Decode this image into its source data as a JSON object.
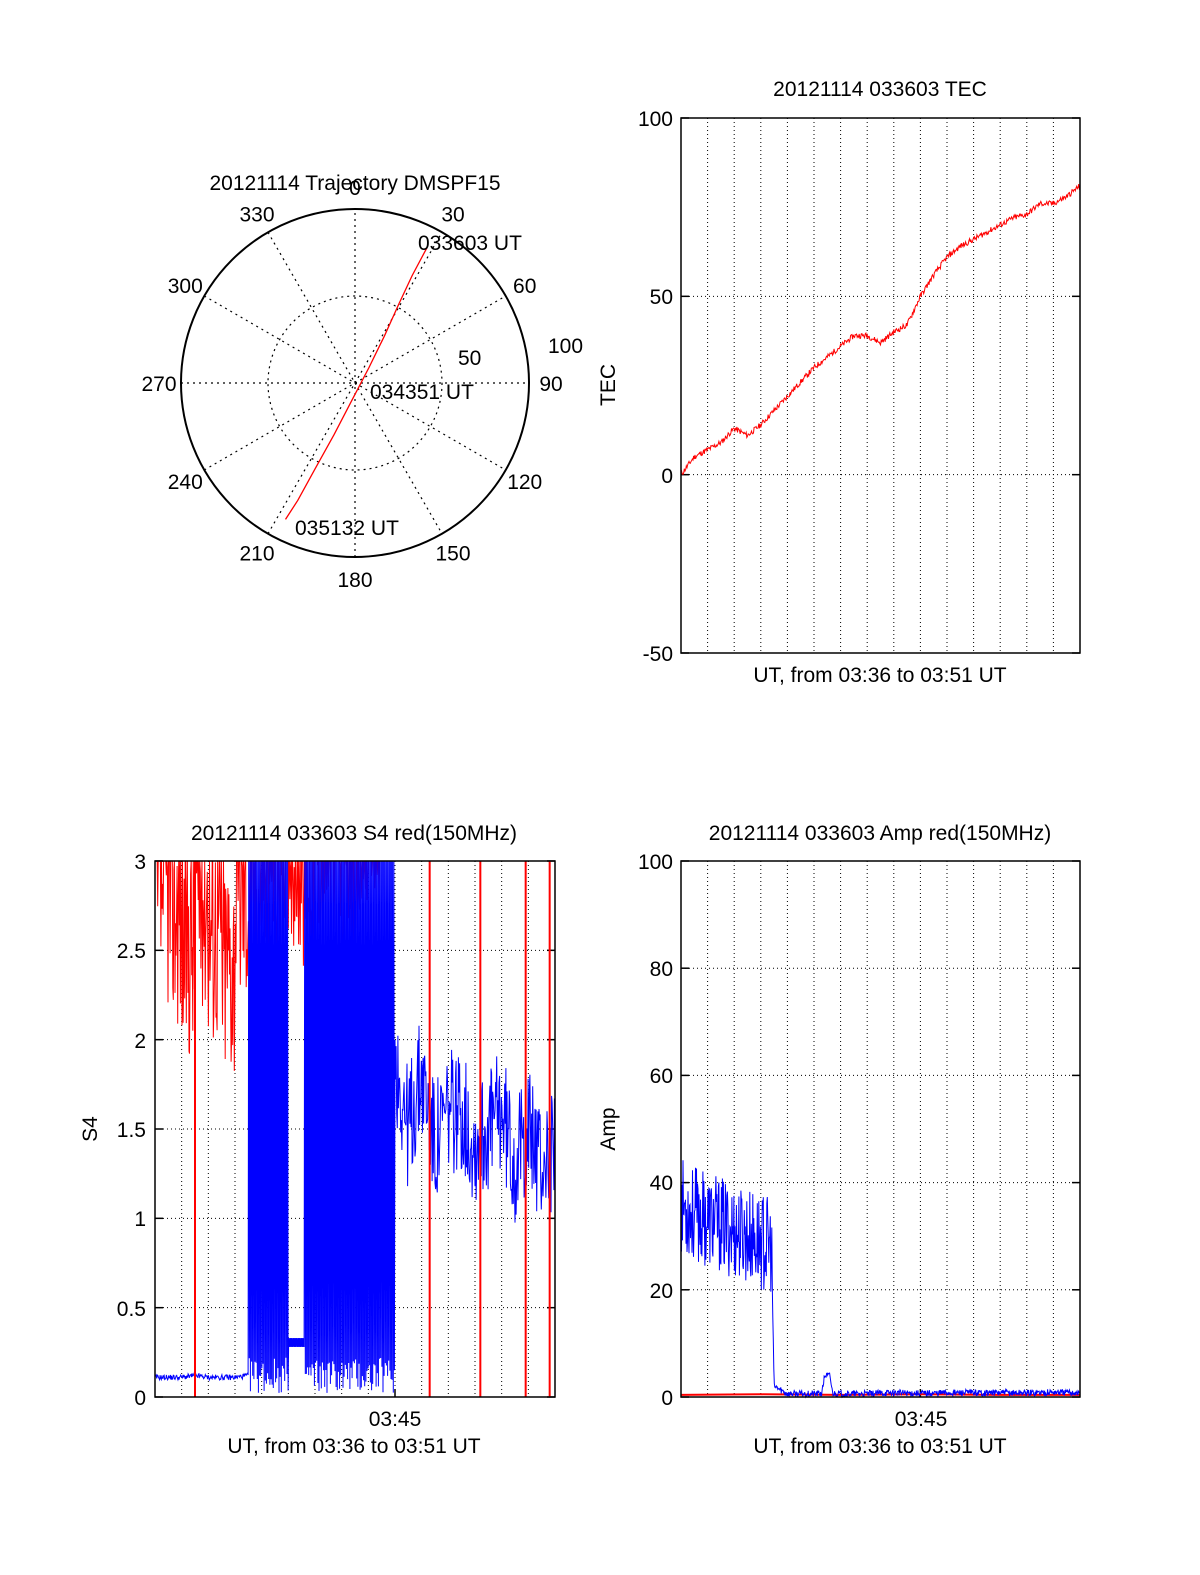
{
  "chart_data": [
    {
      "type": "polar",
      "title": "20121114 Trajectory DMSPF15",
      "angle_labels": [
        "0",
        "30",
        "60",
        "90",
        "120",
        "150",
        "180",
        "210",
        "240",
        "270",
        "300",
        "330"
      ],
      "radial_ticks": [
        "50",
        "100"
      ],
      "rlim": [
        0,
        100
      ],
      "grid": true,
      "series": [
        {
          "color": "#ff0000",
          "points": [
            {
              "az": 28,
              "r": 88
            },
            {
              "az": 28,
              "r": 70
            },
            {
              "az": 29,
              "r": 52
            },
            {
              "az": 32,
              "r": 32
            },
            {
              "az": 42,
              "r": 12
            },
            {
              "az": 190,
              "r": 10
            },
            {
              "az": 202,
              "r": 32
            },
            {
              "az": 205,
              "r": 55
            },
            {
              "az": 206,
              "r": 75
            },
            {
              "az": 207,
              "r": 88
            }
          ]
        }
      ],
      "annotations": [
        {
          "text": "033603 UT",
          "az": 28,
          "r": 88
        },
        {
          "text": "034351 UT",
          "az": 85,
          "r": 13
        },
        {
          "text": "035132 UT",
          "az": 196,
          "r": 90
        }
      ]
    },
    {
      "type": "line",
      "title": "20121114 033603 TEC",
      "xlabel": "UT, from 03:36 to 03:51 UT",
      "ylabel": "TEC",
      "ylim": [
        -50,
        100
      ],
      "yticks": [
        "-50",
        "0",
        "50",
        "100"
      ],
      "xlim": [
        0,
        15
      ],
      "grid": true,
      "series": [
        {
          "color": "#ff0000",
          "x": [
            0,
            0.5,
            1,
            1.5,
            2,
            2.5,
            3,
            3.5,
            4,
            4.5,
            5,
            5.5,
            6,
            6.5,
            7,
            7.5,
            8,
            8.5,
            9,
            9.5,
            10,
            10.5,
            11,
            11.5,
            12,
            12.5,
            13,
            13.5,
            14,
            14.5,
            15
          ],
          "y": [
            0,
            5,
            7,
            9,
            13,
            11,
            14,
            18,
            22,
            26,
            30,
            33,
            36,
            39,
            39,
            37,
            40,
            42,
            50,
            56,
            61,
            64,
            66,
            68,
            70,
            72,
            73,
            76,
            76,
            78,
            81
          ]
        }
      ]
    },
    {
      "type": "line",
      "title": "20121114 033603 S4 red(150MHz)",
      "xlabel": "UT, from 03:36 to 03:51 UT",
      "ylabel": "S4",
      "ylim": [
        0,
        3
      ],
      "yticks": [
        "0",
        "0.5",
        "1",
        "1.5",
        "2",
        "2.5",
        "3"
      ],
      "xlim": [
        0,
        15
      ],
      "xticks": [
        {
          "value": 9,
          "label": "03:45"
        }
      ],
      "grid": true,
      "series": [
        {
          "color": "#ff0000",
          "x": [
            0,
            0.5,
            1,
            1.5,
            2,
            2.5,
            3,
            3.5,
            4,
            4.5,
            5,
            5.5,
            6,
            6.5,
            7,
            7.5,
            8,
            8.5
          ],
          "y": [
            2.6,
            2.5,
            2.3,
            2.6,
            2.4,
            2.2,
            2.6,
            2.5,
            2.8,
            2.7,
            2.9,
            2.8,
            2.9,
            3.0,
            2.8,
            2.9,
            3.0,
            2.6
          ]
        },
        {
          "color": "#0000ff",
          "x": [
            0,
            0.5,
            1,
            1.5,
            2,
            2.5,
            3,
            3.5,
            4,
            4.5,
            5,
            5.5,
            6,
            6.5,
            7,
            7.5,
            8,
            8.5,
            9,
            9.5,
            10,
            10.5,
            11,
            11.5,
            12,
            12.5,
            13,
            13.5,
            14,
            14.5,
            15
          ],
          "y": [
            0.11,
            0.11,
            0.11,
            0.12,
            0.11,
            0.11,
            0.11,
            0.12,
            0.11,
            0.11,
            0.11,
            0.12,
            0.3,
            0.3,
            0.31,
            0.29,
            1.6,
            1.4,
            1.9,
            1.5,
            1.8,
            1.4,
            1.6,
            1.6,
            1.4,
            1.5,
            1.6,
            1.3,
            1.5,
            1.3,
            1.4
          ]
        }
      ]
    },
    {
      "type": "line",
      "title": "20121114 033603 Amp red(150MHz)",
      "xlabel": "UT, from 03:36 to 03:51 UT",
      "ylabel": "Amp",
      "ylim": [
        0,
        100
      ],
      "yticks": [
        "0",
        "20",
        "40",
        "60",
        "80",
        "100"
      ],
      "xlim": [
        0,
        15
      ],
      "xticks": [
        {
          "value": 9,
          "label": "03:45"
        }
      ],
      "grid": true,
      "series": [
        {
          "color": "#0000ff",
          "x": [
            0,
            0.5,
            1,
            1.5,
            2,
            2.5,
            3,
            3.4,
            3.5,
            4,
            5,
            5.3,
            5.4,
            5.6,
            5.7,
            6,
            7,
            8,
            9,
            10,
            11,
            12,
            13,
            14,
            15
          ],
          "y": [
            36,
            34,
            33,
            32,
            31,
            30,
            29,
            28,
            2,
            0.6,
            0.6,
            0.7,
            4,
            4,
            0.7,
            0.6,
            0.6,
            0.8,
            0.7,
            0.8,
            0.8,
            0.8,
            0.8,
            0.9,
            0.8
          ]
        },
        {
          "color": "#ff0000",
          "x": [
            0,
            3,
            6,
            9,
            12,
            15
          ],
          "y": [
            0.4,
            0.5,
            0.4,
            0.5,
            0.4,
            0.4
          ]
        }
      ]
    }
  ]
}
